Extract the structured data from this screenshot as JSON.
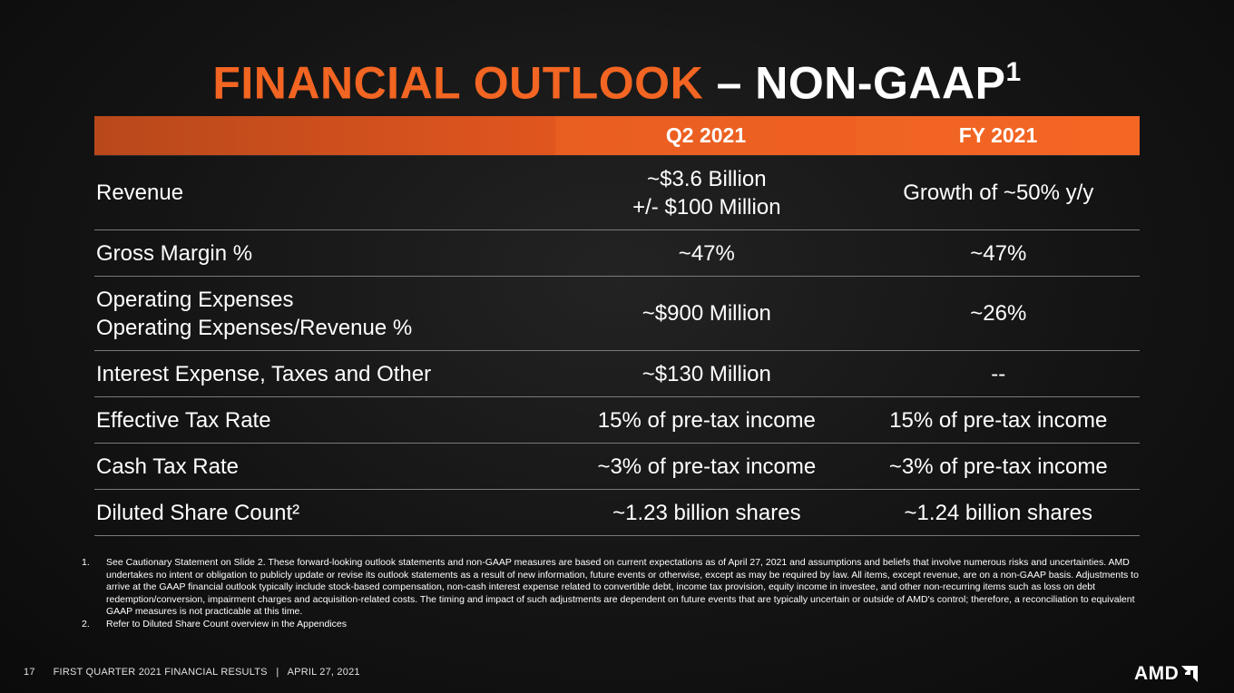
{
  "title": {
    "orange": "FINANCIAL OUTLOOK",
    "white": " – NON-GAAP",
    "sup": "1"
  },
  "table": {
    "headers": [
      "",
      "Q2 2021",
      "FY 2021"
    ],
    "rows": {
      "revenue": {
        "label": "Revenue",
        "q2_line1": "~$3.6 Billion",
        "q2_line2": "+/- $100 Million",
        "fy": "Growth of ~50% y/y"
      },
      "gross_margin": {
        "label": "Gross Margin %",
        "q2": "~47%",
        "fy": "~47%"
      },
      "opex": {
        "label_line1": "Operating Expenses",
        "label_line2": "Operating Expenses/Revenue %",
        "q2": "~$900 Million",
        "fy": "~26%"
      },
      "interest": {
        "label": "Interest Expense, Taxes and Other",
        "q2": "~$130 Million",
        "fy": "--"
      },
      "effective_tax": {
        "label": "Effective Tax Rate",
        "q2": "15% of pre-tax income",
        "fy": "15% of pre-tax income"
      },
      "cash_tax": {
        "label": "Cash Tax Rate",
        "q2": "~3% of pre-tax income",
        "fy": "~3% of pre-tax income"
      },
      "diluted_share": {
        "label": "Diluted Share Count²",
        "q2": "~1.23 billion shares",
        "fy": "~1.24 billion shares"
      }
    }
  },
  "footnotes": [
    {
      "num": "1.",
      "text": "See Cautionary Statement on Slide 2. These forward-looking outlook statements and non-GAAP measures are based on current expectations as of April  27, 2021 and assumptions and beliefs that involve numerous risks and uncertainties. AMD undertakes no intent or obligation to publicly update or revise its outlook statements as a result of new information, future events or otherwise, except as may be required by law. All items, except revenue, are on a non-GAAP basis. Adjustments to arrive at the GAAP financial outlook typically include stock-based compensation, non-cash interest expense related to convertible debt, income tax provision, equity income in investee, and other non-recurring items such as loss on debt redemption/conversion, impairment charges and acquisition-related costs. The timing and impact of such adjustments are dependent on future events that are typically uncertain or outside of AMD's control; therefore, a reconciliation to equivalent GAAP measures is not practicable at this time."
    },
    {
      "num": "2.",
      "text": "Refer to Diluted Share Count overview in the Appendices"
    }
  ],
  "footer": {
    "page": "17",
    "text": "FIRST QUARTER 2021 FINANCIAL RESULTS   |   APRIL 27, 2021"
  },
  "logo": {
    "text": "AMD",
    "icon": "amd-arrow-icon"
  },
  "colors": {
    "accent": "#f26522",
    "background": "#141414"
  }
}
